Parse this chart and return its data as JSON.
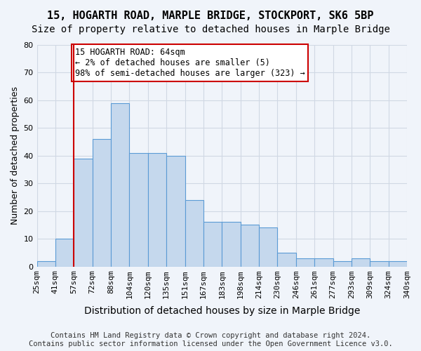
{
  "title": "15, HOGARTH ROAD, MARPLE BRIDGE, STOCKPORT, SK6 5BP",
  "subtitle": "Size of property relative to detached houses in Marple Bridge",
  "xlabel": "Distribution of detached houses by size in Marple Bridge",
  "ylabel": "Number of detached properties",
  "bin_edges": [
    "25sqm",
    "41sqm",
    "57sqm",
    "72sqm",
    "88sqm",
    "104sqm",
    "120sqm",
    "135sqm",
    "151sqm",
    "167sqm",
    "183sqm",
    "198sqm",
    "214sqm",
    "230sqm",
    "246sqm",
    "261sqm",
    "277sqm",
    "293sqm",
    "309sqm",
    "324sqm",
    "340sqm"
  ],
  "bar_values": [
    2,
    10,
    39,
    46,
    59,
    41,
    41,
    40,
    24,
    16,
    16,
    15,
    14,
    5,
    3,
    3,
    2,
    3,
    2,
    2
  ],
  "bar_color": "#c5d8ed",
  "bar_edge_color": "#5b9bd5",
  "vline_x": 2.0,
  "vline_color": "#cc0000",
  "annotation_text": "15 HOGARTH ROAD: 64sqm\n← 2% of detached houses are smaller (5)\n98% of semi-detached houses are larger (323) →",
  "annotation_box_color": "#ffffff",
  "annotation_box_edge": "#cc0000",
  "ylim": [
    0,
    80
  ],
  "yticks": [
    0,
    10,
    20,
    30,
    40,
    50,
    60,
    70,
    80
  ],
  "grid_color": "#d0d8e4",
  "footer_line1": "Contains HM Land Registry data © Crown copyright and database right 2024.",
  "footer_line2": "Contains public sector information licensed under the Open Government Licence v3.0.",
  "title_fontsize": 11,
  "subtitle_fontsize": 10,
  "xlabel_fontsize": 10,
  "ylabel_fontsize": 9,
  "tick_fontsize": 8,
  "annotation_fontsize": 8.5,
  "footer_fontsize": 7.5,
  "background_color": "#f0f4fa"
}
